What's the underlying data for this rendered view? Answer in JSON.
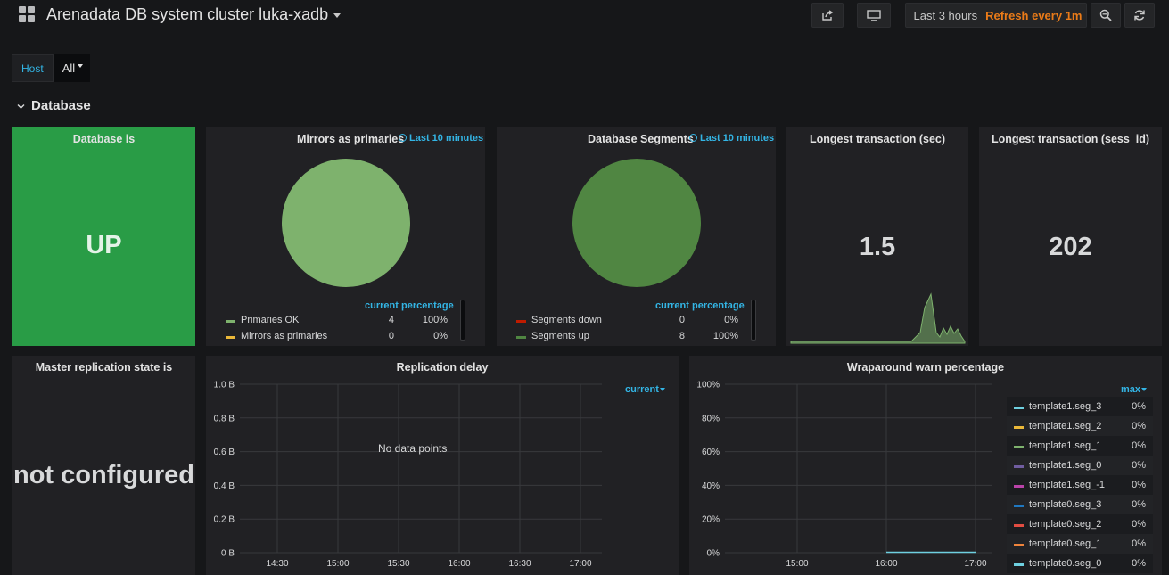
{
  "header": {
    "title": "Arenadata DB system cluster luka-xadb",
    "time_range": "Last 3 hours",
    "refresh": "Refresh every 1m",
    "icons": [
      "apps-icon",
      "share-icon",
      "tv-mode-icon",
      "clock-icon",
      "zoom-out-icon",
      "refresh-icon"
    ]
  },
  "variables": {
    "host_label": "Host",
    "host_value": "All"
  },
  "row": {
    "title": "Database"
  },
  "panels": {
    "db_status": {
      "title": "Database is",
      "value": "UP",
      "bg_color": "#299c46"
    },
    "mirrors": {
      "title": "Mirrors as primaries",
      "time_info": "Last 10 minutes",
      "legend_headers": [
        "current",
        "percentage"
      ],
      "slices": [
        {
          "name": "Primaries OK",
          "current": "4",
          "percentage": "100%",
          "color": "#7eb26d"
        },
        {
          "name": "Mirrors as primaries",
          "current": "0",
          "percentage": "0%",
          "color": "#eab839"
        }
      ]
    },
    "segments": {
      "title": "Database Segments",
      "time_info": "Last 10 minutes",
      "legend_headers": [
        "current",
        "percentage"
      ],
      "slices": [
        {
          "name": "Segments down",
          "current": "0",
          "percentage": "0%",
          "color": "#bf1b00"
        },
        {
          "name": "Segments up",
          "current": "8",
          "percentage": "100%",
          "color": "#508642"
        }
      ]
    },
    "longest_tx_sec": {
      "title": "Longest transaction (sec)",
      "value": "1.5",
      "sparkline_color": "#7eb26d"
    },
    "longest_tx_sess": {
      "title": "Longest transaction (sess_id)",
      "value": "202"
    },
    "master_repl": {
      "title": "Master replication state is",
      "value": "not configured"
    },
    "replication_delay": {
      "title": "Replication delay",
      "no_data": "No data points",
      "legend_header": "current",
      "y_ticks": [
        "1.0 B",
        "0.8 B",
        "0.6 B",
        "0.4 B",
        "0.2 B",
        "0 B"
      ],
      "x_ticks": [
        "14:30",
        "15:00",
        "15:30",
        "16:00",
        "16:30",
        "17:00"
      ]
    },
    "wraparound": {
      "title": "Wraparound warn percentage",
      "legend_header": "max",
      "y_ticks": [
        "100%",
        "80%",
        "60%",
        "40%",
        "20%",
        "0%"
      ],
      "x_ticks": [
        "15:00",
        "16:00",
        "17:00"
      ],
      "series": [
        {
          "name": "template1.seg_3",
          "max": "0%",
          "color": "#6ed0e0"
        },
        {
          "name": "template1.seg_2",
          "max": "0%",
          "color": "#eab839"
        },
        {
          "name": "template1.seg_1",
          "max": "0%",
          "color": "#7eb26d"
        },
        {
          "name": "template1.seg_0",
          "max": "0%",
          "color": "#705da0"
        },
        {
          "name": "template1.seg_-1",
          "max": "0%",
          "color": "#ba43a9"
        },
        {
          "name": "template0.seg_3",
          "max": "0%",
          "color": "#1f78c1"
        },
        {
          "name": "template0.seg_2",
          "max": "0%",
          "color": "#e24d42"
        },
        {
          "name": "template0.seg_1",
          "max": "0%",
          "color": "#ef843c"
        },
        {
          "name": "template0.seg_0",
          "max": "0%",
          "color": "#6ed0e0"
        }
      ]
    }
  }
}
